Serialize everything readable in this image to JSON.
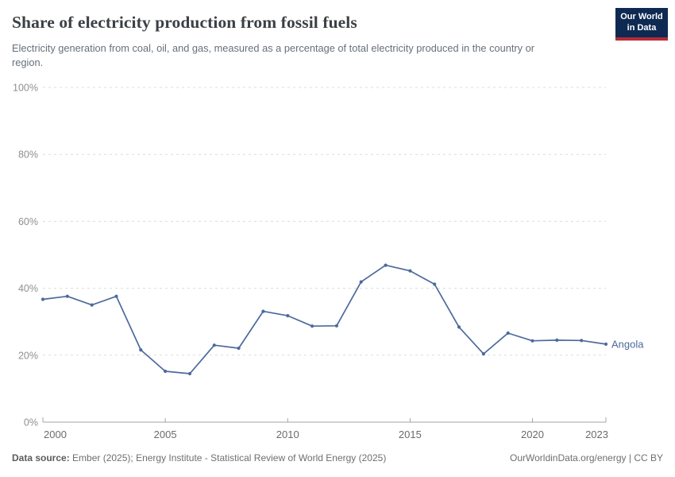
{
  "header": {
    "title": "Share of electricity production from fossil fuels",
    "subtitle": "Electricity generation from coal, oil, and gas, measured as a percentage of total electricity produced in the country or region.",
    "logo": {
      "line1": "Our World",
      "line2": "in Data",
      "bg_color": "#0E2A52",
      "accent_color": "#B62B36"
    }
  },
  "chart_data": {
    "type": "line",
    "title": "Share of electricity production from fossil fuels",
    "x": [
      2000,
      2001,
      2002,
      2003,
      2004,
      2005,
      2006,
      2007,
      2008,
      2009,
      2010,
      2011,
      2012,
      2013,
      2014,
      2015,
      2016,
      2017,
      2018,
      2019,
      2020,
      2021,
      2022,
      2023
    ],
    "series": [
      {
        "name": "Angola",
        "color": "#4C6A9C",
        "values": [
          36.7,
          37.6,
          35.0,
          37.6,
          21.6,
          15.2,
          14.5,
          23.0,
          22.1,
          33.1,
          31.8,
          28.7,
          28.8,
          41.9,
          46.9,
          45.2,
          41.2,
          28.4,
          20.4,
          26.6,
          24.3,
          24.5,
          24.4,
          23.3
        ]
      }
    ],
    "xlabel": "",
    "ylabel": "",
    "xlim": [
      2000,
      2023
    ],
    "ylim": [
      0,
      100
    ],
    "x_ticks": [
      2000,
      2005,
      2010,
      2015,
      2020,
      2023
    ],
    "y_ticks": [
      {
        "value": 0,
        "label": "0%"
      },
      {
        "value": 20,
        "label": "20%"
      },
      {
        "value": 40,
        "label": "40%"
      },
      {
        "value": 60,
        "label": "60%"
      },
      {
        "value": 80,
        "label": "80%"
      },
      {
        "value": 100,
        "label": "100%"
      }
    ],
    "grid": "horizontal-dashed",
    "legend_position": "end-of-line",
    "entity_label": "Angola"
  },
  "footer": {
    "datasource_label": "Data source:",
    "datasource_text": " Ember (2025); Energy Institute - Statistical Review of World Energy (2025)",
    "right_text": "OurWorldinData.org/energy | CC BY"
  }
}
